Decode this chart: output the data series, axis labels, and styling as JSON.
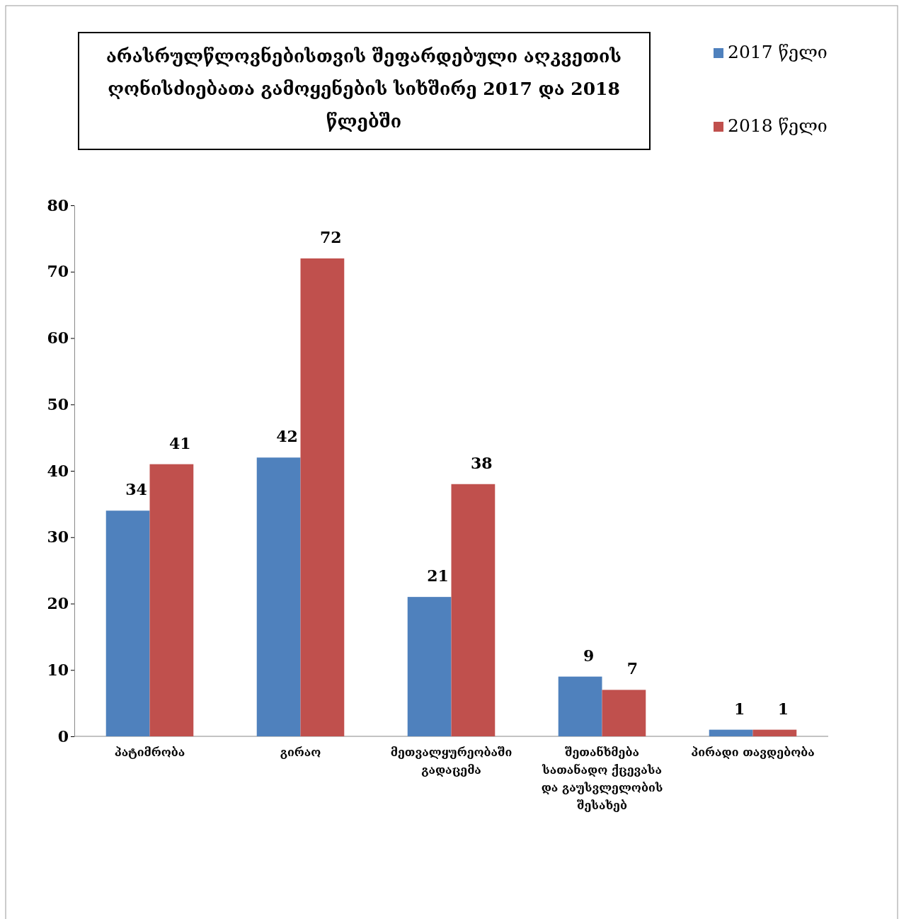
{
  "chart_data": {
    "type": "bar",
    "title": "არასრულწლოვნებისთვის შეფარდებული აღკვეთის ღონისძიებათა გამოყენების სიხშირე 2017 და 2018 წლებში",
    "categories": [
      "პატიმრობა",
      "გირაო",
      "მეთვალყურეობაში გადაცემა",
      "შეთანხმება სათანადო ქცევასა და გაუსვლელობის შესახებ",
      "პირადი თავდებობა"
    ],
    "series": [
      {
        "name": "2017 წელი",
        "color": "#4f81bd",
        "values": [
          34,
          42,
          21,
          9,
          1
        ]
      },
      {
        "name": "2018 წელი",
        "color": "#c0504d",
        "values": [
          41,
          72,
          38,
          7,
          1
        ]
      }
    ],
    "ylim": [
      0,
      80
    ],
    "yticks": [
      0,
      10,
      20,
      30,
      40,
      50,
      60,
      70,
      80
    ],
    "data_labels": true,
    "legend": "top right"
  }
}
